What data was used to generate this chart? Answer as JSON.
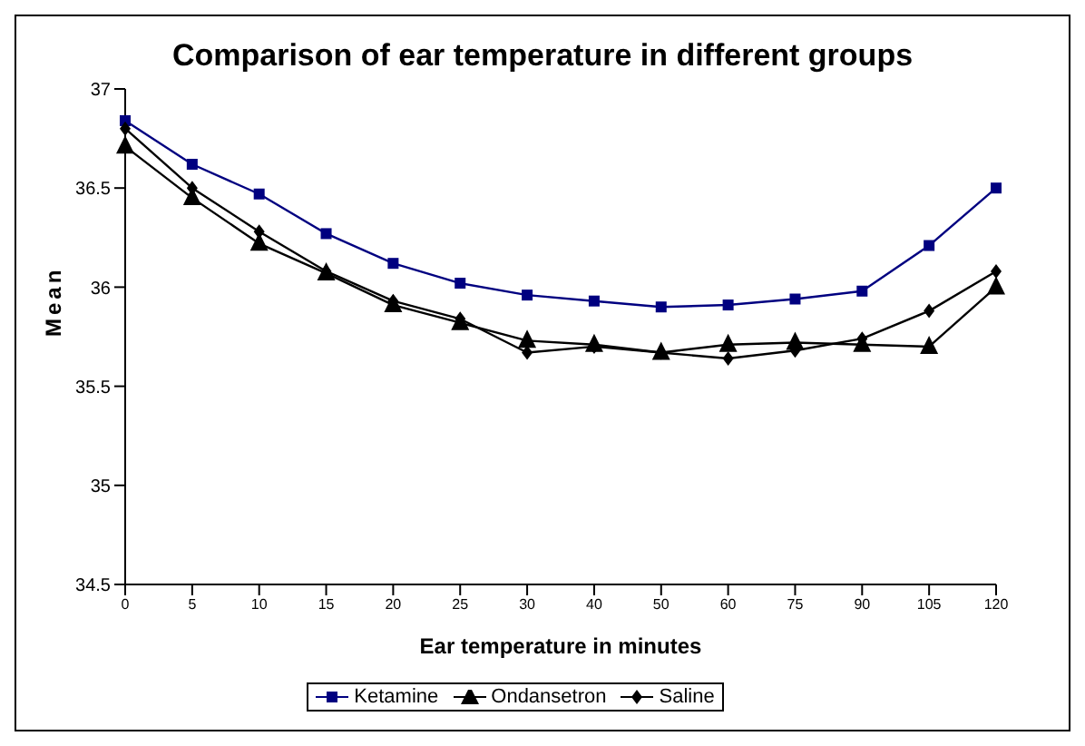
{
  "chart_data": {
    "type": "line",
    "title": "Comparison of ear temperature in different groups",
    "xlabel": "Ear temperature in minutes",
    "ylabel": "Mean",
    "categories": [
      "0",
      "5",
      "10",
      "15",
      "20",
      "25",
      "30",
      "40",
      "50",
      "60",
      "75",
      "90",
      "105",
      "120"
    ],
    "series": [
      {
        "name": "Ketamine",
        "color": "#000080",
        "marker": "square",
        "values": [
          36.84,
          36.62,
          36.47,
          36.27,
          36.12,
          36.02,
          35.96,
          35.93,
          35.9,
          35.91,
          35.94,
          35.98,
          36.21,
          36.5
        ]
      },
      {
        "name": "Ondansetron",
        "color": "#000000",
        "marker": "triangle",
        "values": [
          36.71,
          36.45,
          36.22,
          36.07,
          35.91,
          35.82,
          35.73,
          35.71,
          35.67,
          35.71,
          35.72,
          35.71,
          35.7,
          36.0
        ]
      },
      {
        "name": "Saline",
        "color": "#000000",
        "marker": "diamond",
        "values": [
          36.8,
          36.5,
          36.28,
          36.08,
          35.93,
          35.84,
          35.67,
          35.7,
          35.67,
          35.64,
          35.68,
          35.74,
          35.88,
          36.08
        ]
      }
    ],
    "ylim": [
      34.5,
      37
    ],
    "yticks": [
      34.5,
      35,
      35.5,
      36,
      36.5,
      37
    ],
    "grid": false,
    "legend": "bottom",
    "line_style": "solid"
  }
}
